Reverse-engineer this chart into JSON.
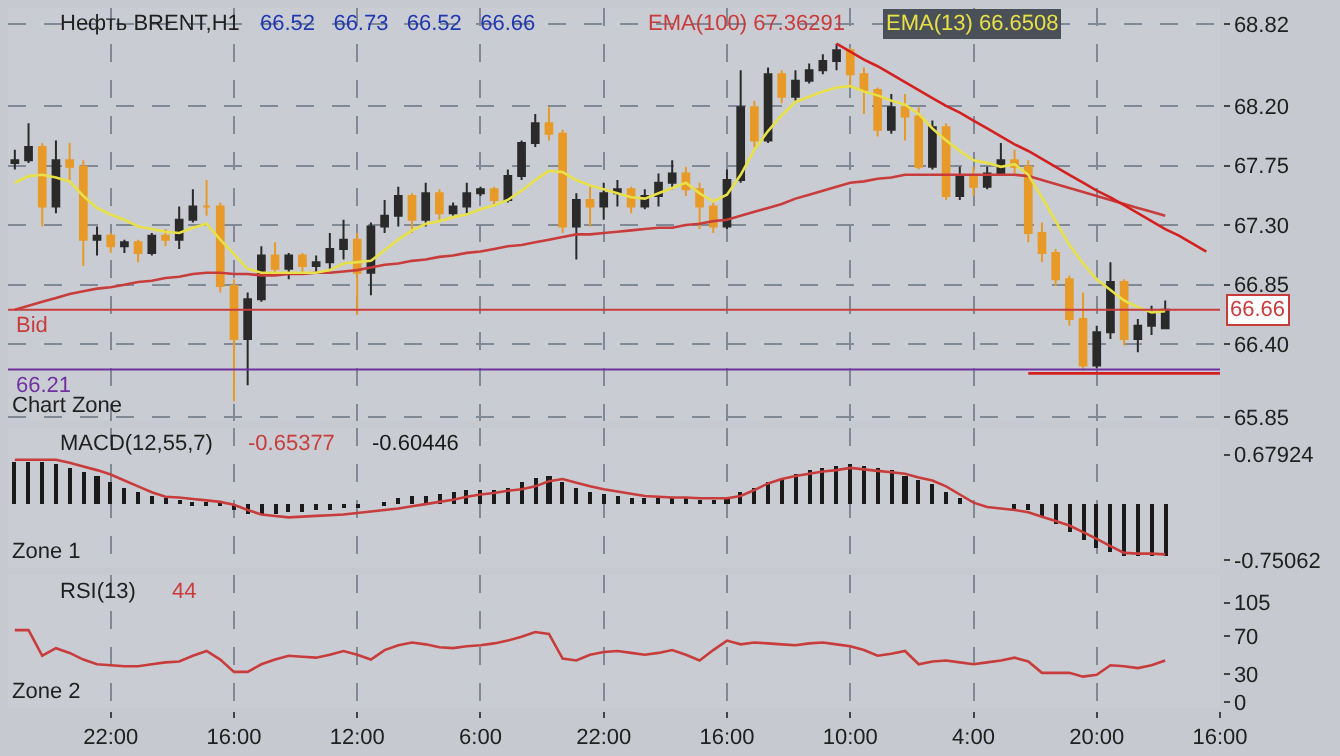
{
  "chart_data": [
    {
      "type": "candlestick",
      "title": "Нефть BRENT,H1",
      "subtitle": "66.52   66.73   66.52   66.66",
      "categories": [
        null,
        null,
        null,
        null,
        null,
        null,
        null,
        null,
        null,
        null,
        null,
        null,
        null,
        null,
        null,
        null,
        null,
        null,
        null,
        null,
        null,
        null,
        null,
        null,
        null,
        null,
        null,
        null,
        null,
        null,
        null,
        null,
        null,
        null,
        null,
        null,
        null,
        null,
        null,
        null,
        null,
        null,
        null,
        null,
        null,
        null,
        null,
        null,
        null,
        null,
        null,
        null,
        null,
        null,
        null,
        null,
        null,
        null,
        null,
        null,
        null,
        null,
        null,
        null,
        null,
        null,
        null,
        null,
        null,
        null,
        null,
        null,
        null,
        null,
        null,
        null,
        null,
        null,
        null,
        null,
        null,
        null,
        null,
        null,
        null,
        null,
        null,
        null,
        null
      ],
      "colors": [
        "#2a2a2a",
        "#2a2a2a",
        "#e89a28",
        "#2a2a2a",
        "#e89a28",
        "#e89a28",
        "#2a2a2a",
        "#e89a28",
        "#2a2a2a",
        "#e89a28",
        "#2a2a2a",
        "#e89a28",
        "#2a2a2a",
        "#2a2a2a",
        "#e89a28",
        "#e89a28",
        "#e89a28",
        "#2a2a2a",
        "#2a2a2a",
        "#e89a28",
        "#2a2a2a",
        "#e89a28",
        "#2a2a2a",
        "#2a2a2a",
        "#2a2a2a",
        "#e89a28",
        "#2a2a2a",
        "#2a2a2a",
        "#2a2a2a",
        "#e89a28",
        "#2a2a2a",
        "#e89a28",
        "#2a2a2a",
        "#2a2a2a",
        "#2a2a2a",
        "#e89a28",
        "#2a2a2a",
        "#2a2a2a",
        "#2a2a2a",
        "#e89a28",
        "#e89a28",
        "#2a2a2a",
        "#e89a28",
        "#2a2a2a",
        "#2a2a2a",
        "#e89a28",
        "#2a2a2a",
        "#2a2a2a",
        "#2a2a2a",
        "#e89a28",
        "#e89a28",
        "#e89a28",
        "#2a2a2a",
        "#2a2a2a",
        "#e89a28",
        "#2a2a2a",
        "#e89a28",
        "#2a2a2a",
        "#2a2a2a",
        "#2a2a2a",
        "#2a2a2a",
        "#e89a28",
        "#e89a28",
        "#e89a28",
        "#2a2a2a",
        "#e89a28",
        "#e89a28",
        "#2a2a2a",
        "#e89a28",
        "#2a2a2a",
        "#e89a28",
        "#2a2a2a",
        "#2a2a2a",
        "#e89a28",
        "#e89a28",
        "#e89a28",
        "#e89a28",
        "#e89a28",
        "#e89a28",
        "#2a2a2a",
        "#2a2a2a",
        "#e89a28",
        "#2a2a2a",
        "#2a2a2a",
        "#2a2a2a",
        null,
        null,
        null,
        null
      ],
      "ohlc": [
        [
          67.77,
          67.87,
          67.72,
          67.79
        ],
        [
          67.79,
          68.07,
          67.77,
          67.89
        ],
        [
          67.89,
          67.92,
          67.29,
          67.44
        ],
        [
          67.44,
          67.94,
          67.39,
          67.79
        ],
        [
          67.79,
          67.92,
          67.64,
          67.74
        ],
        [
          67.74,
          67.79,
          66.99,
          67.19
        ],
        [
          67.19,
          67.29,
          67.07,
          67.22
        ],
        [
          67.22,
          67.24,
          67.09,
          67.14
        ],
        [
          67.14,
          67.19,
          67.09,
          67.17
        ],
        [
          67.17,
          67.19,
          67.02,
          67.09
        ],
        [
          67.09,
          67.24,
          67.07,
          67.22
        ],
        [
          67.22,
          67.27,
          67.14,
          67.19
        ],
        [
          67.19,
          67.44,
          67.12,
          67.34
        ],
        [
          67.34,
          67.57,
          67.32,
          67.44
        ],
        [
          67.44,
          67.64,
          67.37,
          67.44
        ],
        [
          67.44,
          67.47,
          66.79,
          66.84
        ],
        [
          66.84,
          66.89,
          65.97,
          66.44
        ],
        [
          66.44,
          66.79,
          66.09,
          66.74
        ],
        [
          66.74,
          67.14,
          66.72,
          67.07
        ],
        [
          67.07,
          67.17,
          66.92,
          66.97
        ],
        [
          66.97,
          67.09,
          66.89,
          67.07
        ],
        [
          67.07,
          67.09,
          66.94,
          66.99
        ],
        [
          66.99,
          67.07,
          66.94,
          67.02
        ],
        [
          67.02,
          67.24,
          66.97,
          67.12
        ],
        [
          67.12,
          67.34,
          67.04,
          67.19
        ],
        [
          67.19,
          67.24,
          66.62,
          66.94
        ],
        [
          66.94,
          67.32,
          66.77,
          67.29
        ],
        [
          67.29,
          67.49,
          67.24,
          67.37
        ],
        [
          67.37,
          67.59,
          67.29,
          67.52
        ],
        [
          67.52,
          67.54,
          67.24,
          67.34
        ],
        [
          67.34,
          67.62,
          67.29,
          67.54
        ],
        [
          67.54,
          67.57,
          67.34,
          67.39
        ],
        [
          67.39,
          67.47,
          67.37,
          67.44
        ],
        [
          67.44,
          67.62,
          67.39,
          67.54
        ],
        [
          67.54,
          67.59,
          67.52,
          67.57
        ],
        [
          67.57,
          67.59,
          67.44,
          67.49
        ],
        [
          67.49,
          67.72,
          67.47,
          67.67
        ],
        [
          67.67,
          67.94,
          67.64,
          67.92
        ],
        [
          67.92,
          68.14,
          67.89,
          68.07
        ],
        [
          68.07,
          68.19,
          67.94,
          67.99
        ],
        [
          67.99,
          68.02,
          67.24,
          67.29
        ],
        [
          67.29,
          67.54,
          67.04,
          67.49
        ],
        [
          67.49,
          67.59,
          67.29,
          67.44
        ],
        [
          67.44,
          67.62,
          67.34,
          67.54
        ],
        [
          67.54,
          67.64,
          67.44,
          67.57
        ],
        [
          67.57,
          67.59,
          67.39,
          67.44
        ],
        [
          67.44,
          67.57,
          67.42,
          67.52
        ],
        [
          67.52,
          67.69,
          67.44,
          67.62
        ],
        [
          67.62,
          67.79,
          67.57,
          67.69
        ],
        [
          67.69,
          67.74,
          67.52,
          67.57
        ],
        [
          67.57,
          67.62,
          67.27,
          67.44
        ],
        [
          67.44,
          67.47,
          67.24,
          67.29
        ],
        [
          67.29,
          67.72,
          67.27,
          67.64
        ],
        [
          67.64,
          68.47,
          67.62,
          68.19
        ],
        [
          68.19,
          68.24,
          67.89,
          67.94
        ],
        [
          67.94,
          68.49,
          67.92,
          68.44
        ],
        [
          68.44,
          68.47,
          68.22,
          68.27
        ],
        [
          68.27,
          68.47,
          68.24,
          68.39
        ],
        [
          68.39,
          68.52,
          68.37,
          68.47
        ],
        [
          68.47,
          68.59,
          68.44,
          68.54
        ],
        [
          68.54,
          68.67,
          68.47,
          68.62
        ],
        [
          68.62,
          68.64,
          68.34,
          68.44
        ],
        [
          68.44,
          68.49,
          68.14,
          68.32
        ],
        [
          68.32,
          68.34,
          67.97,
          68.02
        ],
        [
          68.02,
          68.29,
          67.99,
          68.19
        ],
        [
          68.19,
          68.29,
          67.94,
          68.12
        ],
        [
          68.12,
          68.19,
          67.72,
          67.74
        ],
        [
          67.74,
          68.09,
          67.72,
          68.04
        ],
        [
          68.04,
          68.07,
          67.49,
          67.52
        ],
        [
          67.52,
          67.74,
          67.49,
          67.67
        ],
        [
          67.67,
          67.74,
          67.52,
          67.59
        ],
        [
          67.59,
          67.74,
          67.57,
          67.69
        ],
        [
          67.69,
          67.92,
          67.67,
          67.79
        ],
        [
          67.79,
          67.87,
          67.69,
          67.74
        ],
        [
          67.74,
          67.79,
          67.17,
          67.24
        ],
        [
          67.24,
          67.32,
          67.02,
          67.09
        ],
        [
          67.09,
          67.12,
          66.84,
          66.89
        ],
        [
          66.89,
          66.92,
          66.54,
          66.59
        ],
        [
          66.59,
          66.79,
          66.2,
          66.24
        ],
        [
          66.24,
          66.54,
          66.22,
          66.49
        ],
        [
          66.49,
          67.02,
          66.44,
          66.87
        ],
        [
          66.87,
          66.89,
          66.39,
          66.44
        ],
        [
          66.44,
          66.59,
          66.34,
          66.54
        ],
        [
          66.54,
          66.69,
          66.47,
          66.64
        ],
        [
          66.52,
          66.73,
          66.52,
          66.66
        ],
        null,
        null,
        null,
        null
      ],
      "series": [
        {
          "name": "EMA(100)",
          "type": "line",
          "color": "#c83c3c",
          "values": [
            66.66,
            66.69,
            66.72,
            66.75,
            66.78,
            66.8,
            66.82,
            66.83,
            66.85,
            66.87,
            66.88,
            66.9,
            66.91,
            66.93,
            66.94,
            66.94,
            66.93,
            66.93,
            66.92,
            66.92,
            66.93,
            66.93,
            66.94,
            66.94,
            66.95,
            66.96,
            66.98,
            67.0,
            67.01,
            67.03,
            67.04,
            67.06,
            67.07,
            67.09,
            67.1,
            67.12,
            67.14,
            67.15,
            67.17,
            67.19,
            67.21,
            67.23,
            67.23,
            67.24,
            67.25,
            67.26,
            67.27,
            67.28,
            67.28,
            67.3,
            67.31,
            67.33,
            67.34,
            67.37,
            67.4,
            67.43,
            67.46,
            67.5,
            67.53,
            67.56,
            67.59,
            67.62,
            67.63,
            67.65,
            67.66,
            67.68,
            67.68,
            67.68,
            67.68,
            67.68,
            67.68,
            67.68,
            67.68,
            67.68,
            67.67,
            67.64,
            67.61,
            67.58,
            67.55,
            67.52,
            67.49,
            67.46,
            67.43,
            67.4,
            67.37,
            null,
            null,
            null,
            null
          ]
        },
        {
          "name": "EMA(13)",
          "type": "line",
          "color": "#e8e048",
          "values": [
            67.62,
            67.67,
            67.68,
            67.66,
            67.63,
            67.52,
            67.43,
            67.38,
            67.34,
            67.29,
            67.27,
            67.25,
            67.24,
            67.28,
            67.31,
            67.19,
            67.08,
            66.97,
            66.94,
            66.94,
            66.94,
            66.94,
            66.94,
            66.96,
            67.01,
            67.02,
            67.03,
            67.11,
            67.19,
            67.26,
            67.31,
            67.33,
            67.36,
            67.38,
            67.42,
            67.45,
            67.49,
            67.56,
            67.64,
            67.71,
            67.7,
            67.64,
            67.6,
            67.57,
            67.54,
            67.51,
            67.5,
            67.54,
            67.58,
            67.62,
            67.54,
            67.48,
            67.53,
            67.68,
            67.87,
            68.01,
            68.13,
            68.23,
            68.27,
            68.31,
            68.34,
            68.35,
            68.31,
            68.28,
            68.24,
            68.21,
            68.14,
            68.03,
            67.94,
            67.86,
            67.79,
            67.77,
            67.74,
            67.76,
            67.68,
            67.51,
            67.33,
            67.15,
            67.01,
            66.89,
            66.81,
            66.73,
            66.68,
            66.64,
            66.65,
            null,
            null,
            null,
            null
          ]
        },
        {
          "type": "line",
          "color": "#d42020",
          "values": [
            null,
            null,
            null,
            null,
            null,
            null,
            null,
            null,
            null,
            null,
            null,
            null,
            null,
            null,
            null,
            null,
            null,
            null,
            null,
            null,
            null,
            null,
            null,
            null,
            null,
            null,
            null,
            null,
            null,
            null,
            null,
            null,
            null,
            null,
            null,
            null,
            null,
            null,
            null,
            null,
            null,
            null,
            null,
            null,
            null,
            null,
            null,
            null,
            null,
            null,
            null,
            null,
            null,
            null,
            null,
            null,
            null,
            null,
            null,
            null,
            68.67,
            68.61,
            68.55,
            68.5,
            68.44,
            68.38,
            68.32,
            68.26,
            68.2,
            68.15,
            68.09,
            68.03,
            67.97,
            67.91,
            67.86,
            67.8,
            67.74,
            67.68,
            67.62,
            67.56,
            67.51,
            67.45,
            67.39,
            67.33,
            67.27,
            67.22,
            67.16,
            67.1,
            null
          ]
        },
        {
          "type": "line",
          "color": "#d42020",
          "values": [
            null,
            null,
            null,
            null,
            null,
            null,
            null,
            null,
            null,
            null,
            null,
            null,
            null,
            null,
            null,
            null,
            null,
            null,
            null,
            null,
            null,
            null,
            null,
            null,
            null,
            null,
            null,
            null,
            null,
            null,
            null,
            null,
            null,
            null,
            null,
            null,
            null,
            null,
            null,
            null,
            null,
            null,
            null,
            null,
            null,
            null,
            null,
            null,
            null,
            null,
            null,
            null,
            null,
            null,
            null,
            null,
            null,
            null,
            null,
            null,
            null,
            null,
            null,
            null,
            null,
            null,
            null,
            null,
            null,
            null,
            null,
            null,
            null,
            null,
            66.18,
            66.18,
            66.18,
            66.18,
            66.18,
            66.18,
            66.18,
            66.18,
            66.18,
            66.18,
            66.18,
            66.18,
            66.18,
            66.18,
            66.18
          ]
        }
      ],
      "ref_lines": [
        {
          "axis": "y",
          "value": 66.66,
          "label": "Bid",
          "color": "#c83c3c"
        },
        {
          "axis": "y",
          "value": 66.21,
          "label": "66.21",
          "color": "#7030a0"
        }
      ],
      "annotations": [
        "67.36291",
        "66.6508",
        "Chart Zone",
        "66.66"
      ],
      "ylim": [
        65.82,
        68.94
      ],
      "yticks": [
        68.82,
        {
          "value": 68.2,
          "label": "68.20"
        },
        67.75,
        {
          "value": 67.3,
          "label": "67.30"
        },
        66.85,
        {
          "value": 66.4,
          "label": "66.40"
        },
        65.85
      ],
      "tick_labels": "y",
      "grid": true
    },
    {
      "type": "bar",
      "title": "MACD(12,55,7)",
      "categories": [
        null,
        null,
        null,
        null,
        null,
        null,
        null,
        null,
        null,
        null,
        null,
        null,
        null,
        null,
        null,
        null,
        null,
        null,
        null,
        null,
        null,
        null,
        null,
        null,
        null,
        null,
        null,
        null,
        null,
        null,
        null,
        null,
        null,
        null,
        null,
        null,
        null,
        null,
        null,
        null,
        null,
        null,
        null,
        null,
        null,
        null,
        null,
        null,
        null,
        null,
        null,
        null,
        null,
        null,
        null,
        null,
        null,
        null,
        null,
        null,
        null,
        null,
        null,
        null,
        null,
        null,
        null,
        null,
        null,
        null,
        null,
        null,
        null,
        null,
        null,
        null,
        null,
        null,
        null,
        null,
        null,
        null,
        null,
        null,
        null,
        null,
        null,
        null,
        null
      ],
      "series": [
        {
          "type": "line",
          "color": "#c83c3c",
          "values": [
            0.61,
            0.61,
            0.61,
            0.61,
            0.57,
            0.52,
            0.47,
            0.41,
            0.33,
            0.25,
            0.17,
            0.11,
            0.1,
            0.08,
            0.06,
            0.04,
            0.0,
            -0.07,
            -0.13,
            -0.15,
            -0.17,
            -0.16,
            -0.15,
            -0.14,
            -0.13,
            -0.11,
            -0.09,
            -0.07,
            -0.05,
            -0.02,
            0.01,
            0.04,
            0.07,
            0.11,
            0.14,
            0.16,
            0.19,
            0.21,
            0.25,
            0.32,
            0.35,
            0.3,
            0.25,
            0.21,
            0.18,
            0.15,
            0.12,
            0.11,
            0.1,
            0.1,
            0.09,
            0.09,
            0.09,
            0.12,
            0.2,
            0.29,
            0.35,
            0.39,
            0.42,
            0.45,
            0.47,
            0.5,
            0.48,
            0.46,
            0.44,
            0.42,
            0.37,
            0.33,
            0.25,
            0.14,
            0.03,
            -0.03,
            -0.05,
            -0.07,
            -0.1,
            -0.16,
            -0.22,
            -0.28,
            -0.37,
            -0.46,
            -0.56,
            -0.65,
            -0.66,
            -0.66,
            -0.67,
            null,
            null,
            null,
            null
          ]
        },
        {
          "type": "bar",
          "color": "#1a1a1a",
          "values": [
            0.59,
            0.59,
            0.58,
            0.56,
            0.5,
            0.44,
            0.38,
            0.31,
            0.24,
            0.18,
            0.12,
            0.08,
            0.06,
            0.05,
            0.04,
            0.02,
            -0.06,
            -0.12,
            -0.13,
            -0.12,
            -0.1,
            -0.09,
            -0.08,
            -0.07,
            -0.05,
            -0.03,
            0.0,
            0.03,
            0.08,
            0.11,
            0.13,
            0.15,
            0.17,
            0.19,
            0.2,
            0.21,
            0.24,
            0.3,
            0.36,
            0.38,
            0.3,
            0.22,
            0.18,
            0.14,
            0.12,
            0.1,
            0.09,
            0.09,
            0.08,
            0.08,
            0.07,
            0.06,
            0.09,
            0.18,
            0.24,
            0.3,
            0.36,
            0.42,
            0.46,
            0.5,
            0.53,
            0.54,
            0.53,
            0.5,
            0.46,
            0.4,
            0.33,
            0.27,
            0.18,
            0.1,
            null,
            null,
            null,
            -0.06,
            -0.08,
            -0.14,
            -0.25,
            -0.37,
            -0.48,
            -0.58,
            -0.64,
            -0.68,
            -0.69,
            -0.7,
            -0.7,
            null,
            null,
            null,
            null
          ]
        }
      ],
      "annotations": [
        "-0.65377",
        "-0.60446",
        "Zone 1"
      ],
      "ylim": [
        -0.855,
        1.04
      ],
      "yticks": [
        0.67924,
        -0.75062
      ],
      "tick_labels": "y",
      "grid": "x"
    },
    {
      "type": "line",
      "title": "RSI(13)",
      "categories": [
        null,
        null,
        null,
        null,
        null,
        null,
        null,
        "22:00",
        null,
        null,
        null,
        null,
        null,
        null,
        null,
        null,
        "16:00",
        null,
        null,
        null,
        null,
        null,
        null,
        null,
        null,
        "12:00",
        null,
        null,
        null,
        null,
        null,
        null,
        null,
        null,
        "6:00",
        null,
        null,
        null,
        null,
        null,
        null,
        null,
        null,
        "22:00",
        null,
        null,
        null,
        null,
        null,
        null,
        null,
        null,
        "16:00",
        null,
        null,
        null,
        null,
        null,
        null,
        null,
        null,
        "10:00",
        null,
        null,
        null,
        null,
        null,
        null,
        null,
        null,
        "4:00",
        null,
        null,
        null,
        null,
        null,
        null,
        null,
        null,
        "20:00",
        null,
        null,
        null,
        null,
        null,
        null,
        null,
        null,
        "16:00"
      ],
      "series": [
        {
          "color": "#c83c3c",
          "values": [
            76,
            76,
            49,
            57,
            52,
            45,
            40,
            39,
            38,
            38,
            40,
            42,
            43,
            49,
            54,
            45,
            32,
            32,
            40,
            45,
            49,
            48,
            47,
            50,
            54,
            50,
            45,
            55,
            60,
            63,
            61,
            58,
            57,
            59,
            60,
            62,
            65,
            69,
            74,
            72,
            46,
            44,
            50,
            53,
            54,
            52,
            50,
            52,
            55,
            50,
            44,
            55,
            65,
            61,
            63,
            62,
            61,
            60,
            62,
            63,
            61,
            59,
            55,
            49,
            51,
            54,
            40,
            43,
            44,
            42,
            40,
            42,
            44,
            47,
            43,
            31,
            31,
            31,
            27,
            29,
            39,
            38,
            36,
            39,
            44,
            null,
            null,
            null,
            null
          ]
        }
      ],
      "annotations": [
        "44",
        "Zone 2"
      ],
      "ylim": [
        -6,
        134
      ],
      "yticks": [
        105,
        70,
        30,
        0
      ],
      "grid": "x"
    }
  ]
}
